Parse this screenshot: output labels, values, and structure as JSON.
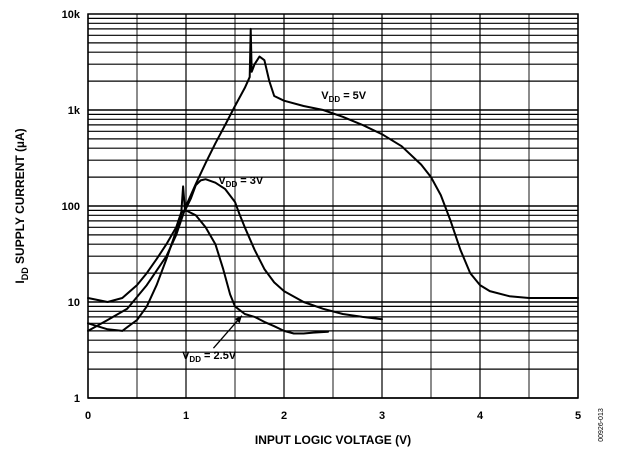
{
  "chart_data": {
    "type": "line",
    "title": "",
    "xlabel": "INPUT LOGIC VOLTAGE (V)",
    "ylabel": "I_DD SUPPLY CURRENT (µA)",
    "ylabel_main": "I",
    "ylabel_sub": "DD",
    "ylabel_rest": " SUPPLY CURRENT (µA)",
    "xlim": [
      0,
      5
    ],
    "ylim": [
      1,
      10000
    ],
    "yscale": "log",
    "grid": true,
    "x_ticks": [
      "0",
      "1",
      "2",
      "3",
      "4",
      "5"
    ],
    "y_ticks": [
      "1",
      "10",
      "100",
      "1k",
      "10k"
    ],
    "side_code": "00926-013",
    "series": [
      {
        "name": "VDD = 5V",
        "label_main": "V",
        "label_sub": "DD",
        "label_rest": " = 5V",
        "points": [
          [
            0,
            5.0
          ],
          [
            0.2,
            6.5
          ],
          [
            0.4,
            8.5
          ],
          [
            0.6,
            15
          ],
          [
            0.8,
            30
          ],
          [
            0.9,
            50
          ],
          [
            1.0,
            100
          ],
          [
            1.1,
            170
          ],
          [
            1.2,
            280
          ],
          [
            1.3,
            450
          ],
          [
            1.4,
            700
          ],
          [
            1.5,
            1100
          ],
          [
            1.6,
            1700
          ],
          [
            1.65,
            2200
          ],
          [
            1.66,
            7000
          ],
          [
            1.67,
            2500
          ],
          [
            1.7,
            3000
          ],
          [
            1.75,
            3600
          ],
          [
            1.8,
            3300
          ],
          [
            1.85,
            2000
          ],
          [
            1.9,
            1400
          ],
          [
            2.0,
            1250
          ],
          [
            2.2,
            1100
          ],
          [
            2.4,
            1000
          ],
          [
            2.6,
            850
          ],
          [
            2.8,
            700
          ],
          [
            3.0,
            560
          ],
          [
            3.2,
            420
          ],
          [
            3.4,
            270
          ],
          [
            3.5,
            200
          ],
          [
            3.6,
            130
          ],
          [
            3.7,
            70
          ],
          [
            3.8,
            35
          ],
          [
            3.9,
            20
          ],
          [
            4.0,
            15
          ],
          [
            4.1,
            13
          ],
          [
            4.3,
            11.5
          ],
          [
            4.5,
            11
          ],
          [
            5.0,
            11
          ]
        ]
      },
      {
        "name": "VDD = 3V",
        "label_main": "V",
        "label_sub": "DD",
        "label_rest": " = 3V",
        "points": [
          [
            0,
            6.0
          ],
          [
            0.2,
            5.2
          ],
          [
            0.35,
            5.0
          ],
          [
            0.5,
            6.5
          ],
          [
            0.6,
            9
          ],
          [
            0.7,
            15
          ],
          [
            0.8,
            28
          ],
          [
            0.9,
            55
          ],
          [
            0.95,
            80
          ],
          [
            0.97,
            160
          ],
          [
            0.99,
            90
          ],
          [
            1.05,
            120
          ],
          [
            1.1,
            165
          ],
          [
            1.15,
            185
          ],
          [
            1.2,
            190
          ],
          [
            1.3,
            175
          ],
          [
            1.4,
            150
          ],
          [
            1.5,
            110
          ],
          [
            1.55,
            80
          ],
          [
            1.6,
            60
          ],
          [
            1.7,
            35
          ],
          [
            1.8,
            22
          ],
          [
            1.9,
            16
          ],
          [
            2.0,
            13
          ],
          [
            2.2,
            10
          ],
          [
            2.4,
            8.5
          ],
          [
            2.6,
            7.5
          ],
          [
            2.8,
            7.0
          ],
          [
            3.0,
            6.6
          ]
        ]
      },
      {
        "name": "VDD = 2.5V",
        "label_main": "V",
        "label_sub": "DD",
        "label_rest": " = 2.5V",
        "points": [
          [
            0,
            11
          ],
          [
            0.1,
            10.5
          ],
          [
            0.2,
            10
          ],
          [
            0.35,
            11
          ],
          [
            0.5,
            15
          ],
          [
            0.6,
            20
          ],
          [
            0.7,
            28
          ],
          [
            0.8,
            40
          ],
          [
            0.9,
            60
          ],
          [
            0.95,
            85
          ],
          [
            1.0,
            90
          ],
          [
            1.1,
            80
          ],
          [
            1.2,
            60
          ],
          [
            1.3,
            40
          ],
          [
            1.38,
            22
          ],
          [
            1.45,
            12
          ],
          [
            1.5,
            9
          ],
          [
            1.6,
            7.5
          ],
          [
            1.7,
            7
          ],
          [
            1.8,
            6.2
          ],
          [
            1.9,
            5.6
          ],
          [
            2.0,
            5.0
          ],
          [
            2.1,
            4.7
          ],
          [
            2.2,
            4.7
          ],
          [
            2.3,
            4.8
          ],
          [
            2.45,
            4.9
          ]
        ]
      }
    ]
  }
}
